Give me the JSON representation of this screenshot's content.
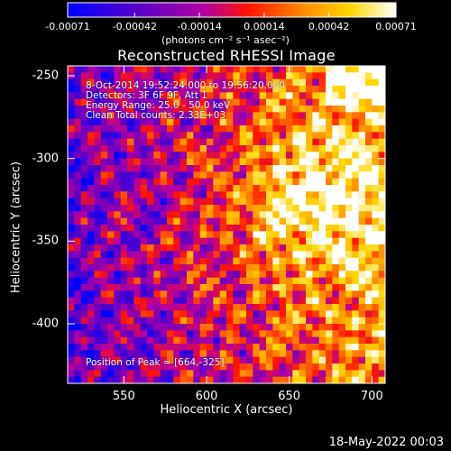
{
  "colorbar": {
    "ticks": [
      "-0.00071",
      "-0.00042",
      "-0.00014",
      "0.00014",
      "0.00042",
      "0.00071"
    ],
    "tick_values": [
      -0.00071,
      -0.00042,
      -0.00014,
      0.00014,
      0.00042,
      0.00071
    ],
    "unit": "(photons cm⁻² s⁻¹ asec⁻²)"
  },
  "annotations": {
    "line1": "8-Oct-2014 19:52:24.000 to 19:56:20.000",
    "line2": "Detectors: 3F 6F 9F, Att 1",
    "line3": "Energy Range: 25.0 - 50.0 keV",
    "line4": "Clean     Total counts: 2.33E+03",
    "peak": "Position of Peak = [664,-325]"
  },
  "footer": "18-May-2022 00:03",
  "chart_data": {
    "type": "heatmap",
    "title": "Reconstructed RHESSI Image",
    "xlabel": "Heliocentric X (arcsec)",
    "ylabel": "Heliocentric Y (arcsec)",
    "xlim": [
      516,
      708
    ],
    "ylim": [
      -436,
      -244
    ],
    "xticks": [
      "550",
      "600",
      "650",
      "700"
    ],
    "xtick_values": [
      550,
      600,
      650,
      700
    ],
    "yticks": [
      "-250",
      "-300",
      "-350",
      "-400"
    ],
    "ytick_values": [
      -250,
      -300,
      -350,
      -400
    ],
    "value_range": [
      -0.00071,
      0.00071
    ],
    "colormap": [
      "#0000ff",
      "#5a00c8",
      "#b400a0",
      "#ff1400",
      "#ff8c00",
      "#ffd700",
      "#ffffff"
    ],
    "peak": [
      664,
      -325
    ],
    "grid": false
  }
}
